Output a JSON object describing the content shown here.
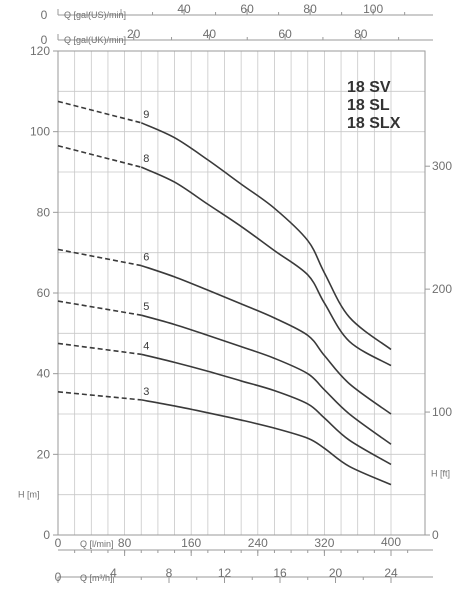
{
  "chart_data": {
    "type": "line",
    "title_lines": [
      "18 SV",
      "18 SL",
      "18 SLX"
    ],
    "y_axis_left": {
      "label": "H [m]",
      "range": [
        0,
        120
      ],
      "ticks": [
        0,
        20,
        40,
        60,
        80,
        100,
        120
      ]
    },
    "y_axis_right": {
      "label": "H [ft]",
      "range": [
        0,
        393.7
      ],
      "ticks": [
        0,
        100,
        200,
        300
      ]
    },
    "x_axes": [
      {
        "key": "q_lmin",
        "label": "Q [l/min]",
        "range": [
          0,
          400
        ],
        "ticks": [
          80,
          160,
          240,
          320,
          400
        ],
        "position": "bottom"
      },
      {
        "key": "q_m3h",
        "label": "Q [m³/h]",
        "range": [
          0,
          24
        ],
        "ticks": [
          0,
          4,
          8,
          12,
          16,
          20,
          24
        ],
        "position": "bottom"
      },
      {
        "key": "q_galus",
        "label": "Q [gal(US)/min]",
        "range": [
          0,
          105.7
        ],
        "ticks": [
          0,
          20,
          40,
          60,
          80,
          100
        ],
        "tick_labels": [
          "0",
          "",
          "40",
          "60",
          "80",
          "100"
        ],
        "position": "top"
      },
      {
        "key": "q_galuk",
        "label": "Q [gal(UK)/min]",
        "range": [
          0,
          88.0
        ],
        "ticks": [
          0,
          20,
          40,
          60,
          80
        ],
        "tick_labels": [
          "0",
          "20",
          "40",
          "60",
          "80"
        ],
        "position": "top"
      }
    ],
    "x_grid_step": 20,
    "grid": true,
    "series": [
      {
        "name": "9",
        "dashed": [
          [
            0,
            107.5
          ],
          [
            100,
            102.2
          ]
        ],
        "points": [
          [
            100,
            102.2
          ],
          [
            140,
            98.5
          ],
          [
            180,
            93.0
          ],
          [
            220,
            87.0
          ],
          [
            260,
            81.0
          ],
          [
            300,
            73.0
          ],
          [
            320,
            65.0
          ],
          [
            350,
            54.0
          ],
          [
            400,
            46.0
          ]
        ]
      },
      {
        "name": "8",
        "dashed": [
          [
            0,
            96.5
          ],
          [
            100,
            91.2
          ]
        ],
        "points": [
          [
            100,
            91.2
          ],
          [
            140,
            87.5
          ],
          [
            180,
            82.0
          ],
          [
            220,
            76.5
          ],
          [
            260,
            70.5
          ],
          [
            300,
            64.5
          ],
          [
            320,
            57.5
          ],
          [
            350,
            48.0
          ],
          [
            400,
            42.0
          ]
        ]
      },
      {
        "name": "6",
        "dashed": [
          [
            0,
            70.8
          ],
          [
            100,
            66.8
          ]
        ],
        "points": [
          [
            100,
            66.8
          ],
          [
            140,
            64.0
          ],
          [
            180,
            60.7
          ],
          [
            220,
            57.3
          ],
          [
            260,
            53.8
          ],
          [
            300,
            49.5
          ],
          [
            320,
            44.5
          ],
          [
            350,
            37.5
          ],
          [
            400,
            30.0
          ]
        ]
      },
      {
        "name": "5",
        "dashed": [
          [
            0,
            58.0
          ],
          [
            100,
            54.5
          ]
        ],
        "points": [
          [
            100,
            54.5
          ],
          [
            140,
            52.2
          ],
          [
            180,
            49.5
          ],
          [
            220,
            46.7
          ],
          [
            260,
            43.8
          ],
          [
            300,
            40.0
          ],
          [
            320,
            36.0
          ],
          [
            350,
            30.0
          ],
          [
            400,
            22.5
          ]
        ]
      },
      {
        "name": "4",
        "dashed": [
          [
            0,
            47.5
          ],
          [
            100,
            44.8
          ]
        ],
        "points": [
          [
            100,
            44.8
          ],
          [
            140,
            42.8
          ],
          [
            180,
            40.6
          ],
          [
            220,
            38.2
          ],
          [
            260,
            35.8
          ],
          [
            300,
            32.5
          ],
          [
            320,
            29.0
          ],
          [
            350,
            23.5
          ],
          [
            400,
            17.5
          ]
        ]
      },
      {
        "name": "3",
        "dashed": [
          [
            0,
            35.5
          ],
          [
            100,
            33.5
          ]
        ],
        "points": [
          [
            100,
            33.5
          ],
          [
            140,
            32.0
          ],
          [
            180,
            30.3
          ],
          [
            220,
            28.5
          ],
          [
            260,
            26.5
          ],
          [
            300,
            24.0
          ],
          [
            320,
            21.5
          ],
          [
            350,
            17.0
          ],
          [
            400,
            12.5
          ]
        ]
      }
    ]
  }
}
